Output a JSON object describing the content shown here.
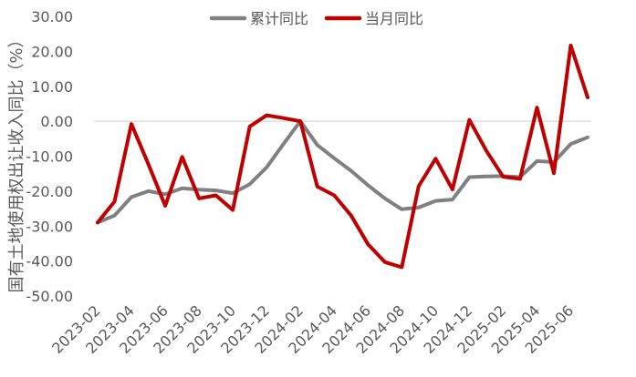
{
  "chart_data": {
    "type": "line",
    "title": "",
    "xlabel": "",
    "ylabel": "国有土地使用权出让收入同比（%）",
    "ylim": [
      -50,
      30
    ],
    "yticks": [
      "30.00",
      "20.00",
      "10.00",
      "0.00",
      "-10.00",
      "-20.00",
      "-30.00",
      "-40.00",
      "-50.00"
    ],
    "x_tick_labels": [
      "2023-02",
      "2023-04",
      "2023-06",
      "2023-08",
      "2023-10",
      "2023-12",
      "2024-02",
      "2024-04",
      "2024-06",
      "2024-08",
      "2024-10",
      "2024-12",
      "2025-02",
      "2025-04",
      "2025-06"
    ],
    "legend_position": "top-center",
    "grid": false,
    "categories": [
      "2023-02",
      "2023-03",
      "2023-04",
      "2023-05",
      "2023-06",
      "2023-07",
      "2023-08",
      "2023-09",
      "2023-10",
      "2023-11",
      "2023-12",
      "2024-01",
      "2024-02",
      "2024-03",
      "2024-04",
      "2024-05",
      "2024-06",
      "2024-07",
      "2024-08",
      "2024-09",
      "2024-10",
      "2024-11",
      "2024-12",
      "2025-01",
      "2025-02",
      "2025-03",
      "2025-04",
      "2025-05",
      "2025-06",
      "2025-07"
    ],
    "series": [
      {
        "name": "累计同比",
        "color": "#808080",
        "values": [
          -29.0,
          -27.0,
          -21.7,
          -20.0,
          -20.9,
          -19.2,
          -19.6,
          -19.8,
          -20.6,
          -18.0,
          -13.2,
          -6.5,
          0.0,
          -6.8,
          -10.6,
          -14.2,
          -18.3,
          -22.1,
          -25.2,
          -24.7,
          -22.8,
          -22.4,
          -16.0,
          -15.8,
          -15.7,
          -16.0,
          -11.4,
          -11.7,
          -6.5,
          -4.6
        ]
      },
      {
        "name": "当月同比",
        "color": "#c00000",
        "values": [
          -29.0,
          -23.0,
          -0.8,
          -12.3,
          -24.2,
          -10.2,
          -22.1,
          -21.2,
          -25.4,
          -1.5,
          1.7,
          0.9,
          0.0,
          -18.7,
          -21.2,
          -27.0,
          -35.2,
          -40.3,
          -41.8,
          -18.6,
          -10.7,
          -19.5,
          0.4,
          -8.4,
          -15.9,
          -16.5,
          3.9,
          -14.9,
          21.7,
          6.8
        ]
      }
    ]
  }
}
